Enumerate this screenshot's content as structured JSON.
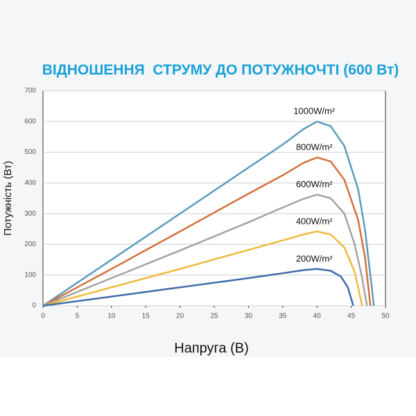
{
  "chart_data": {
    "type": "line",
    "title": "ВІДНОШЕННЯ  СТРУМУ ДО ПОТУЖНОЧТІ (600 Вт)",
    "x_label": "Напруга (В)",
    "y_label": "Потужність (Вт)",
    "xlim": [
      0,
      50
    ],
    "xticks": [
      0,
      5,
      10,
      15,
      20,
      25,
      30,
      35,
      40,
      45,
      50
    ],
    "ylim": [
      0,
      700
    ],
    "yticks": [
      0,
      100,
      200,
      300,
      400,
      500,
      600,
      700
    ],
    "grid": true,
    "series": [
      {
        "name": "1000W/m²",
        "color": "#5b9bbd",
        "x": [
          0,
          10,
          20,
          30,
          35,
          38,
          40,
          42,
          44,
          46,
          47,
          48,
          48.3
        ],
        "values": [
          0,
          150,
          300,
          450,
          525,
          575,
          600,
          585,
          520,
          380,
          250,
          60,
          0
        ]
      },
      {
        "name": "800W/m²",
        "color": "#d4703c",
        "x": [
          0,
          10,
          20,
          30,
          35,
          38,
          40,
          42,
          44,
          46,
          47,
          47.8
        ],
        "values": [
          0,
          120,
          242,
          365,
          425,
          465,
          483,
          470,
          410,
          280,
          160,
          0
        ]
      },
      {
        "name": "600W/m²",
        "color": "#a3a3a3",
        "x": [
          0,
          10,
          20,
          30,
          35,
          38,
          40,
          42,
          44,
          45.5,
          46.5,
          47.3
        ],
        "values": [
          0,
          90,
          180,
          272,
          320,
          348,
          362,
          350,
          300,
          200,
          100,
          0
        ]
      },
      {
        "name": "400W/m²",
        "color": "#f0b93a",
        "x": [
          0,
          10,
          20,
          30,
          35,
          38,
          40,
          42,
          44,
          45.5,
          46.6
        ],
        "values": [
          0,
          60,
          120,
          182,
          213,
          232,
          242,
          232,
          190,
          110,
          0
        ]
      },
      {
        "name": "200W/m²",
        "color": "#3e6aa8",
        "x": [
          0,
          10,
          20,
          30,
          35,
          38,
          40,
          42,
          43.5,
          44.5,
          45.3
        ],
        "values": [
          0,
          30,
          60,
          90,
          106,
          116,
          120,
          114,
          95,
          60,
          0
        ]
      }
    ]
  }
}
